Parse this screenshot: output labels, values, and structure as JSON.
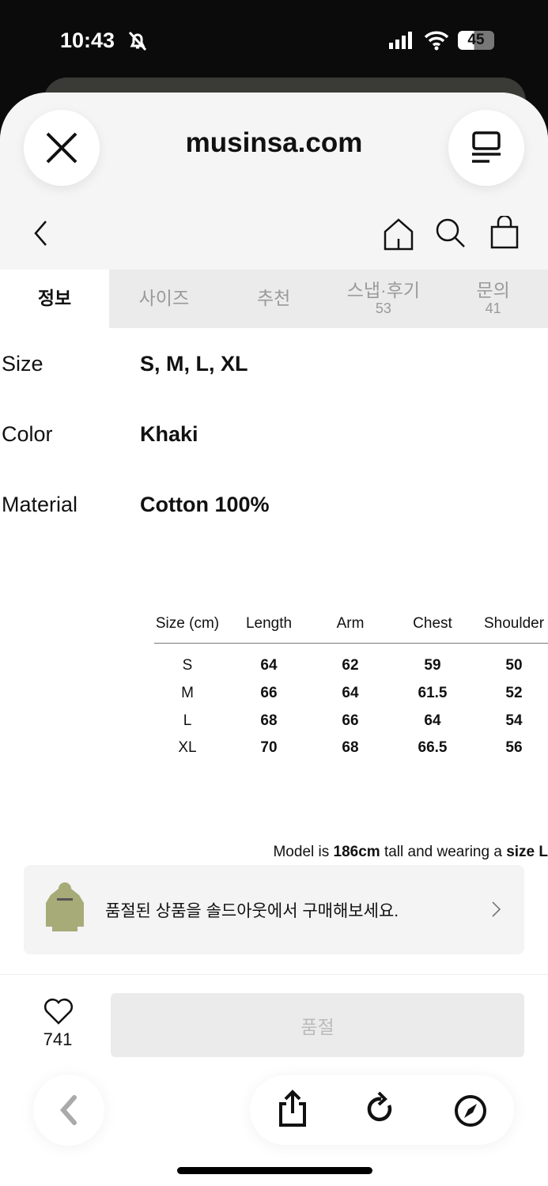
{
  "status": {
    "time": "10:43",
    "battery": "45",
    "icons": [
      "bell-slash-icon",
      "signal-icon",
      "wifi-icon",
      "battery-icon"
    ]
  },
  "browser": {
    "domain": "musinsa.com"
  },
  "tabs": [
    {
      "label": "정보"
    },
    {
      "label": "사이즈"
    },
    {
      "label": "추천"
    },
    {
      "label": "스냅·후기",
      "count": "53"
    },
    {
      "label": "문의",
      "count": "41"
    }
  ],
  "specs": [
    {
      "label": "Size",
      "value": "S, M, L, XL"
    },
    {
      "label": "Color",
      "value": "Khaki"
    },
    {
      "label": "Material",
      "value": "Cotton 100%"
    }
  ],
  "size_table": {
    "headers": [
      "Size (cm)",
      "Length",
      "Arm",
      "Chest",
      "Shoulder"
    ],
    "rows": [
      [
        "S",
        "64",
        "62",
        "59",
        "50"
      ],
      [
        "M",
        "66",
        "64",
        "61.5",
        "52"
      ],
      [
        "L",
        "68",
        "66",
        "64",
        "54"
      ],
      [
        "XL",
        "70",
        "68",
        "66.5",
        "56"
      ]
    ]
  },
  "model_note": {
    "pre": "Model is ",
    "height": "186cm",
    "mid": " tall and wearing a ",
    "size": "size L"
  },
  "banner": {
    "text": "품절된 상품을 솔드아웃에서 구매해보세요."
  },
  "bottom": {
    "likes": "741",
    "buy_label": "품절"
  }
}
